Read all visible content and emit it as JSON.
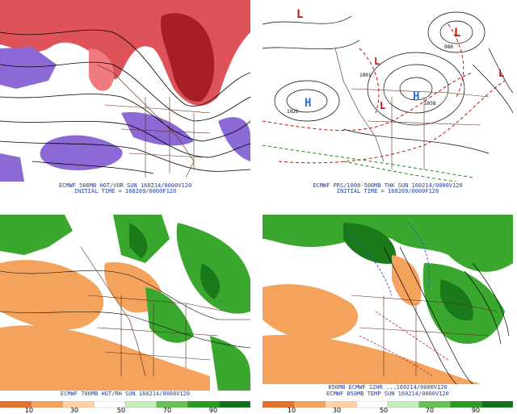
{
  "panels": [
    {
      "id": "tl",
      "caption_lines": [
        "ECMWF 500MB HGT/VOR SUN 160214/0000V120",
        "INITIAL TIME = 160209/0000F120"
      ],
      "field": "500mb-height-vorticity",
      "colors": {
        "pos": "#d8343c",
        "pos_light": "#f07a80",
        "neg": "#8c6ad6"
      },
      "low_labels": []
    },
    {
      "id": "tr",
      "caption_lines": [
        "ECMWF PRS/1000-500MB THK SUN 160214/0000V120",
        "INITIAL TIME = 160209/0000F120"
      ],
      "field": "sea-level-pressure-thickness",
      "pressure_markers": [
        {
          "type": "L",
          "label": "1001"
        },
        {
          "type": "H",
          "label": "1026"
        },
        {
          "type": "H",
          "label": "1038"
        },
        {
          "type": "L",
          "label": "980"
        }
      ],
      "colors": {
        "contour": "#000000",
        "thickness": "#c41010",
        "thickness2": "#1a8a1a",
        "H": "#2c6fd6",
        "L": "#c41010"
      }
    },
    {
      "id": "bl",
      "caption_lines": [
        "ECMWF 700MB HGT/RH SUN 160214/0000V120"
      ],
      "field": "700mb-relative-humidity",
      "colors": {
        "dry": "#f4a35c",
        "moist": "#3aa82e",
        "very_moist": "#1a7a1a"
      }
    },
    {
      "id": "br",
      "caption_lines": [
        "850MB ECMWF 12HR ...160214/0000V120",
        "ECMWF 850MB TEMP SUN 160214/0000V120"
      ],
      "field": "850mb-rh-temperature",
      "colors": {
        "dry": "#f4a35c",
        "moist": "#3aa82e",
        "very_moist": "#1a7a1a",
        "cold": "#2255cc",
        "warm": "#c43070"
      }
    }
  ],
  "colorbars": [
    {
      "id": "left",
      "ticks": [
        "10",
        "30",
        "50",
        "70",
        "90"
      ],
      "colors": [
        "#e4702a",
        "#f4a35c",
        "#ffd4a8",
        "#ffffff",
        "#c8eebc",
        "#66c255",
        "#2a9a22",
        "#13701b"
      ]
    },
    {
      "id": "right",
      "ticks": [
        "10",
        "30",
        "50",
        "70",
        "90"
      ],
      "colors": [
        "#e4702a",
        "#f4a35c",
        "#ffd4a8",
        "#ffffff",
        "#c8eebc",
        "#66c255",
        "#2a9a22",
        "#13701b"
      ]
    }
  ]
}
